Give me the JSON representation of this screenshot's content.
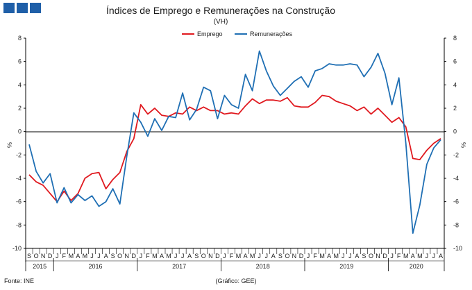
{
  "header": {
    "logo_color": "#1f5fa8"
  },
  "chart_data": {
    "type": "line",
    "title": "Índices de Emprego  e Remunerações na Construção",
    "subtitle": "(VH)",
    "ylabel": "%",
    "ylabel_right": "%",
    "ylim": [
      -10,
      8
    ],
    "yticks": [
      -10,
      -8,
      -6,
      -4,
      -2,
      0,
      2,
      4,
      6,
      8
    ],
    "legend_position": "top-center",
    "grid": false,
    "colors": {
      "Emprego": "#e0191f",
      "Remunerações": "#1f6fb4"
    },
    "months": [
      "S",
      "O",
      "N",
      "D",
      "J",
      "F",
      "M",
      "A",
      "M",
      "J",
      "J",
      "A",
      "S",
      "O",
      "N",
      "D",
      "J",
      "F",
      "M",
      "A",
      "M",
      "J",
      "J",
      "A",
      "S",
      "O",
      "N",
      "D",
      "J",
      "F",
      "M",
      "A",
      "M",
      "J",
      "J",
      "A",
      "S",
      "O",
      "N",
      "D",
      "J",
      "F",
      "M",
      "A",
      "M",
      "J",
      "J",
      "A",
      "S",
      "O",
      "N",
      "D",
      "J",
      "F",
      "M",
      "A",
      "M",
      "J",
      "J",
      "A"
    ],
    "years": [
      {
        "label": "2015",
        "start": 0,
        "end": 3
      },
      {
        "label": "2016",
        "start": 4,
        "end": 15
      },
      {
        "label": "2017",
        "start": 16,
        "end": 27
      },
      {
        "label": "2018",
        "start": 28,
        "end": 39
      },
      {
        "label": "2019",
        "start": 40,
        "end": 51
      },
      {
        "label": "2020",
        "start": 52,
        "end": 59
      }
    ],
    "series": [
      {
        "name": "Emprego",
        "values": [
          -3.7,
          -4.3,
          -4.6,
          -5.3,
          -6.0,
          -5.1,
          -5.9,
          -5.3,
          -4.0,
          -3.6,
          -3.5,
          -4.9,
          -4.1,
          -3.5,
          -1.7,
          -0.6,
          2.3,
          1.5,
          2.0,
          1.4,
          1.3,
          1.6,
          1.5,
          2.1,
          1.8,
          2.1,
          1.8,
          1.8,
          1.5,
          1.6,
          1.5,
          2.2,
          2.8,
          2.4,
          2.7,
          2.7,
          2.6,
          2.9,
          2.2,
          2.1,
          2.1,
          2.5,
          3.1,
          3.0,
          2.6,
          2.4,
          2.2,
          1.8,
          2.1,
          1.5,
          2.0,
          1.4,
          0.8,
          1.2,
          0.4,
          -2.3,
          -2.4,
          -1.6,
          -1.0,
          -0.6
        ]
      },
      {
        "name": "Remunerações",
        "values": [
          -1.1,
          -3.4,
          -4.4,
          -3.6,
          -6.1,
          -4.8,
          -6.1,
          -5.4,
          -5.9,
          -5.5,
          -6.4,
          -6.0,
          -4.9,
          -6.2,
          -2.1,
          1.6,
          0.8,
          -0.4,
          1.1,
          0.1,
          1.3,
          1.2,
          3.3,
          1.0,
          1.9,
          3.8,
          3.5,
          1.1,
          3.1,
          2.3,
          2.0,
          4.9,
          3.5,
          6.9,
          5.2,
          3.9,
          3.1,
          3.7,
          4.3,
          4.7,
          3.8,
          5.2,
          5.4,
          5.8,
          5.7,
          5.7,
          5.8,
          5.7,
          4.7,
          5.5,
          6.7,
          5.0,
          2.3,
          4.6,
          -1.0,
          -8.7,
          -6.3,
          -2.8,
          -1.4,
          -0.7
        ]
      }
    ],
    "source": "Fonte: INE",
    "credit": "(Gráfico: GEE)"
  }
}
